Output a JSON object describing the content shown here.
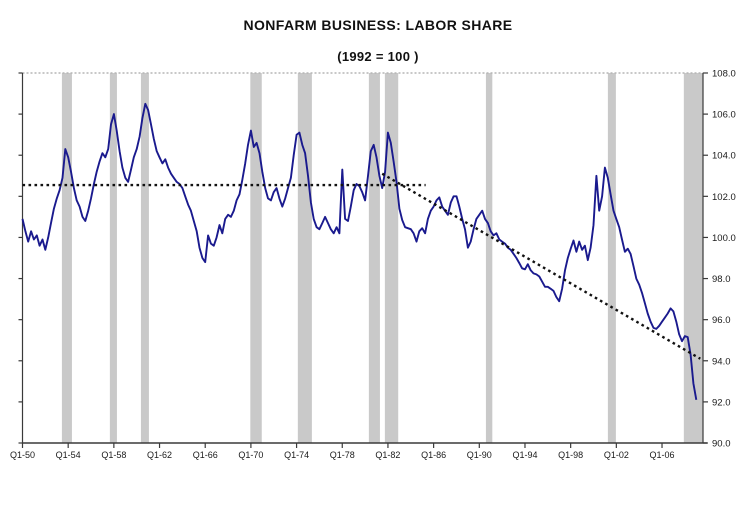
{
  "chart_data": {
    "type": "line",
    "title": "NONFARM BUSINESS: LABOR SHARE",
    "subtitle": "(1992 = 100 )",
    "x_start_year": 1950,
    "x_step_years": 0.25,
    "ylim": [
      90,
      108
    ],
    "grid": false,
    "legend": "none",
    "series": [
      {
        "name": "Nonfarm business labor share index (1992=100), quarterly",
        "color": "#1a1a8e",
        "values": [
          100.9,
          100.3,
          99.8,
          100.3,
          99.9,
          100.1,
          99.6,
          99.9,
          99.4,
          100.0,
          100.7,
          101.4,
          101.9,
          102.3,
          102.9,
          104.3,
          103.9,
          103.2,
          102.4,
          101.8,
          101.5,
          101.0,
          100.8,
          101.3,
          101.9,
          102.6,
          103.2,
          103.7,
          104.1,
          103.9,
          104.3,
          105.5,
          106.0,
          105.2,
          104.2,
          103.4,
          102.9,
          102.7,
          103.3,
          103.9,
          104.3,
          104.9,
          105.8,
          106.5,
          106.2,
          105.5,
          104.8,
          104.2,
          103.9,
          103.6,
          103.8,
          103.4,
          103.1,
          102.9,
          102.7,
          102.6,
          102.4,
          102.0,
          101.6,
          101.3,
          100.8,
          100.3,
          99.5,
          99.0,
          98.8,
          100.1,
          99.7,
          99.6,
          100.0,
          100.6,
          100.2,
          100.9,
          101.1,
          101.0,
          101.3,
          101.8,
          102.1,
          102.8,
          103.6,
          104.5,
          105.2,
          104.4,
          104.6,
          104.1,
          103.2,
          102.4,
          101.9,
          101.8,
          102.2,
          102.4,
          101.9,
          101.5,
          101.9,
          102.4,
          102.9,
          104.0,
          105.0,
          105.1,
          104.5,
          104.1,
          103.0,
          101.7,
          100.9,
          100.5,
          100.4,
          100.7,
          101.0,
          100.7,
          100.4,
          100.2,
          100.5,
          100.2,
          103.3,
          100.9,
          100.8,
          101.5,
          102.3,
          102.6,
          102.5,
          102.2,
          101.8,
          103.0,
          104.2,
          104.5,
          103.9,
          103.0,
          102.4,
          103.2,
          105.1,
          104.6,
          103.7,
          102.7,
          101.4,
          100.85,
          100.5,
          100.45,
          100.4,
          100.2,
          99.8,
          100.3,
          100.45,
          100.2,
          100.9,
          101.3,
          101.5,
          101.8,
          101.95,
          101.5,
          101.3,
          101.1,
          101.7,
          102.0,
          102.0,
          101.5,
          100.9,
          100.4,
          99.5,
          99.8,
          100.4,
          100.9,
          101.1,
          101.3,
          100.9,
          100.7,
          100.3,
          100.1,
          100.2,
          99.9,
          99.8,
          99.7,
          99.5,
          99.4,
          99.2,
          99.0,
          98.75,
          98.5,
          98.45,
          98.7,
          98.4,
          98.25,
          98.2,
          98.1,
          97.85,
          97.6,
          97.6,
          97.5,
          97.4,
          97.1,
          96.9,
          97.5,
          98.4,
          99.0,
          99.45,
          99.85,
          99.3,
          99.8,
          99.4,
          99.6,
          98.9,
          99.5,
          100.6,
          103.0,
          101.3,
          102.0,
          103.4,
          102.9,
          102.1,
          101.3,
          100.9,
          100.5,
          99.9,
          99.3,
          99.45,
          99.2,
          98.6,
          98.0,
          97.7,
          97.3,
          96.8,
          96.3,
          95.9,
          95.6,
          95.55,
          95.7,
          95.9,
          96.1,
          96.3,
          96.55,
          96.4,
          95.9,
          95.3,
          94.95,
          95.2,
          95.15,
          94.3,
          92.9,
          92.1
        ]
      }
    ],
    "trend_lines": [
      {
        "name": "flat-average-trend-pre-1980s",
        "style": "dotted",
        "color": "#111111",
        "points": [
          [
            1950.0,
            102.55
          ],
          [
            1985.3,
            102.55
          ]
        ]
      },
      {
        "name": "declining-trend-post-1980s",
        "style": "dotted",
        "color": "#111111",
        "points": [
          [
            1981.5,
            103.1
          ],
          [
            2009.35,
            94.1
          ]
        ]
      }
    ],
    "recession_bands": {
      "color": "#c9c9c9",
      "spans": [
        [
          1953.45,
          1954.33
        ],
        [
          1957.65,
          1958.27
        ],
        [
          1960.37,
          1961.07
        ],
        [
          1969.95,
          1970.95
        ],
        [
          1974.11,
          1975.34
        ],
        [
          1980.33,
          1981.3
        ],
        [
          1981.73,
          1982.9
        ],
        [
          1990.58,
          1991.14
        ],
        [
          2001.26,
          2001.96
        ],
        [
          2007.91,
          2009.57
        ]
      ]
    },
    "y_axis": {
      "side": "right",
      "min": 90,
      "max": 108,
      "tick_step": 2,
      "tick_labels": [
        "108.0",
        "106.0",
        "104.0",
        "102.0",
        "100.0",
        "98.0",
        "96.0",
        "94.0",
        "92.0",
        "90.0"
      ]
    },
    "x_axis": {
      "tick_years": [
        1950,
        1954,
        1958,
        1962,
        1966,
        1970,
        1974,
        1978,
        1982,
        1986,
        1990,
        1994,
        1998,
        2002,
        2006
      ],
      "tick_labels": [
        "Q1-50",
        "Q1-54",
        "Q1-58",
        "Q1-62",
        "Q1-66",
        "Q1-70",
        "Q1-74",
        "Q1-78",
        "Q1-82",
        "Q1-86",
        "Q1-90",
        "Q1-94",
        "Q1-98",
        "Q1-02",
        "Q1-06"
      ]
    },
    "colors": {
      "line": "#1a1a8e",
      "recession_band": "#c9c9c9",
      "axis": "#3a3a3a",
      "trend": "#111111",
      "top_border": "#b5b5b5",
      "background": "#ffffff"
    }
  }
}
